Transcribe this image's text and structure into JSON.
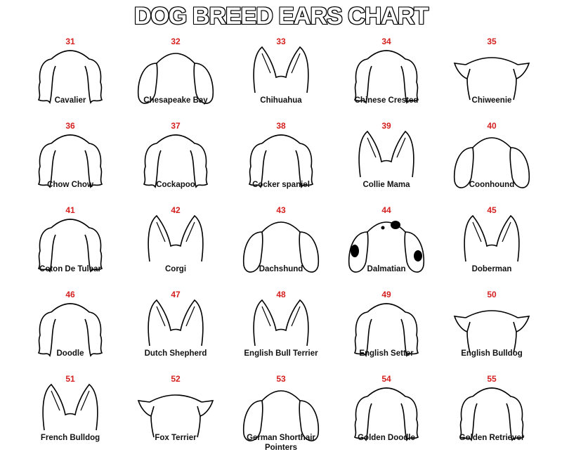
{
  "title": "DOG BREED EARS CHART",
  "colors": {
    "number": "#d62020",
    "line": "#000000",
    "label": "#111111"
  },
  "breeds": [
    {
      "number": "31",
      "name": "Cavalier",
      "ear_type": "fluffy"
    },
    {
      "number": "32",
      "name": "Chesapeake Bay",
      "ear_type": "drop"
    },
    {
      "number": "33",
      "name": "Chihuahua",
      "ear_type": "erect"
    },
    {
      "number": "34",
      "name": "Chinese Crested",
      "ear_type": "fluffy"
    },
    {
      "number": "35",
      "name": "Chiweenie",
      "ear_type": "folded"
    },
    {
      "number": "36",
      "name": "Chow Chow",
      "ear_type": "fluffy"
    },
    {
      "number": "37",
      "name": "Cockapoo",
      "ear_type": "fluffy"
    },
    {
      "number": "38",
      "name": "Cocker spaniel",
      "ear_type": "fluffy"
    },
    {
      "number": "39",
      "name": "Collie Mama",
      "ear_type": "erect"
    },
    {
      "number": "40",
      "name": "Coonhound",
      "ear_type": "drop"
    },
    {
      "number": "41",
      "name": "Coton De Tulear",
      "ear_type": "fluffy"
    },
    {
      "number": "42",
      "name": "Corgi",
      "ear_type": "erect"
    },
    {
      "number": "43",
      "name": "Dachshund",
      "ear_type": "drop"
    },
    {
      "number": "44",
      "name": "Dalmatian",
      "ear_type": "spotted"
    },
    {
      "number": "45",
      "name": "Doberman",
      "ear_type": "erect"
    },
    {
      "number": "46",
      "name": "Doodle",
      "ear_type": "fluffy"
    },
    {
      "number": "47",
      "name": "Dutch Shepherd",
      "ear_type": "erect"
    },
    {
      "number": "48",
      "name": "English Bull Terrier",
      "ear_type": "erect"
    },
    {
      "number": "49",
      "name": "English Setter",
      "ear_type": "fluffy"
    },
    {
      "number": "50",
      "name": "English Bulldog",
      "ear_type": "folded"
    },
    {
      "number": "51",
      "name": "French Bulldog",
      "ear_type": "erect"
    },
    {
      "number": "52",
      "name": "Fox Terrier",
      "ear_type": "folded"
    },
    {
      "number": "53",
      "name": "German Shorthair Pointers",
      "ear_type": "drop"
    },
    {
      "number": "54",
      "name": "Golden Doodle",
      "ear_type": "fluffy"
    },
    {
      "number": "55",
      "name": "Golden Retriever",
      "ear_type": "fluffy"
    }
  ]
}
